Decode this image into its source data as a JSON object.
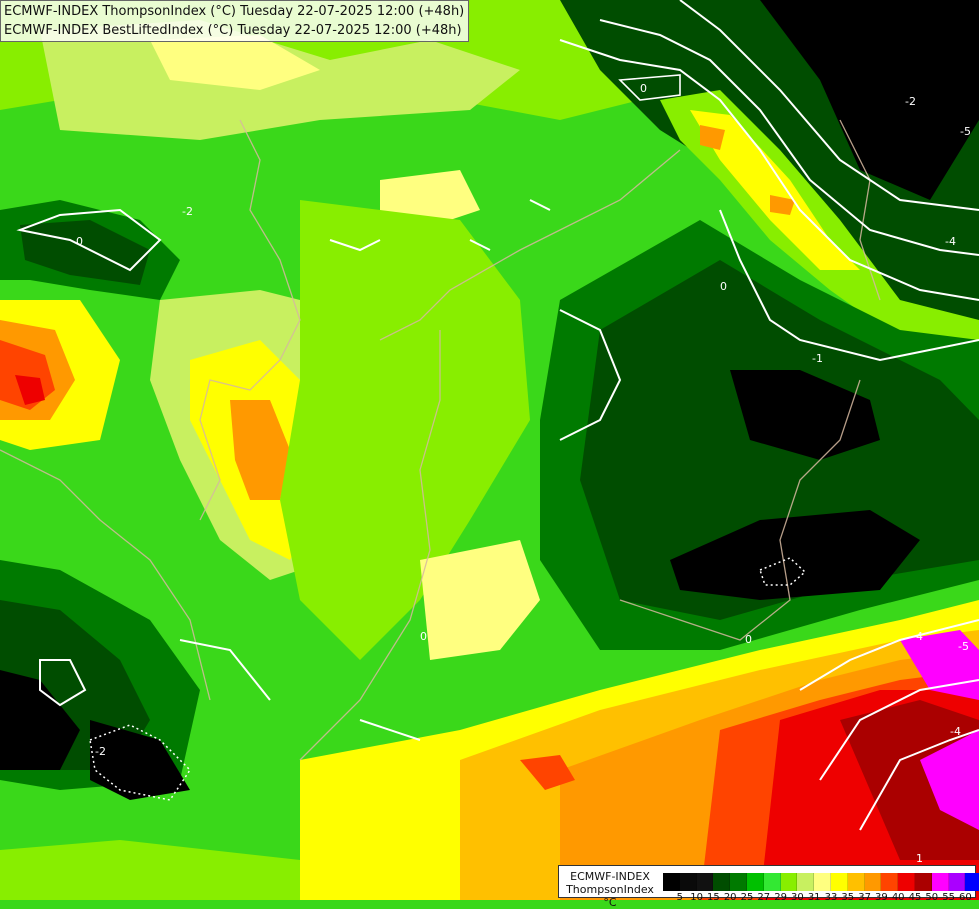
{
  "header": {
    "line1": "ECMWF-INDEX ThompsonIndex (°C) Tuesday 22-07-2025 12:00 (+48h)",
    "line2": "ECMWF-INDEX BestLiftedIndex (°C) Tuesday 22-07-2025 12:00 (+48h)"
  },
  "legend": {
    "model": "ECMWF-INDEX",
    "parameter": "ThompsonIndex",
    "unit": "°C",
    "ticks": [
      "5",
      "10",
      "15",
      "20",
      "25",
      "27",
      "29",
      "30",
      "31",
      "33",
      "35",
      "37",
      "39",
      "40",
      "45",
      "50",
      "55",
      "60"
    ],
    "colors": [
      "#000000",
      "#0a0a0a",
      "#111111",
      "#004d00",
      "#007a00",
      "#00c000",
      "#33e833",
      "#88ee00",
      "#c8f060",
      "#ffff80",
      "#ffff00",
      "#ffc000",
      "#ff9900",
      "#ff4400",
      "#ee0000",
      "#aa0000",
      "#ff00ff",
      "#aa00ff",
      "#0000ff"
    ]
  },
  "contour_labels": [
    "0",
    "-2",
    "-5",
    "-4",
    "0",
    "-1",
    "-2",
    "0",
    "-4",
    "-5",
    "-4",
    "1",
    "-2",
    "0",
    "0"
  ]
}
